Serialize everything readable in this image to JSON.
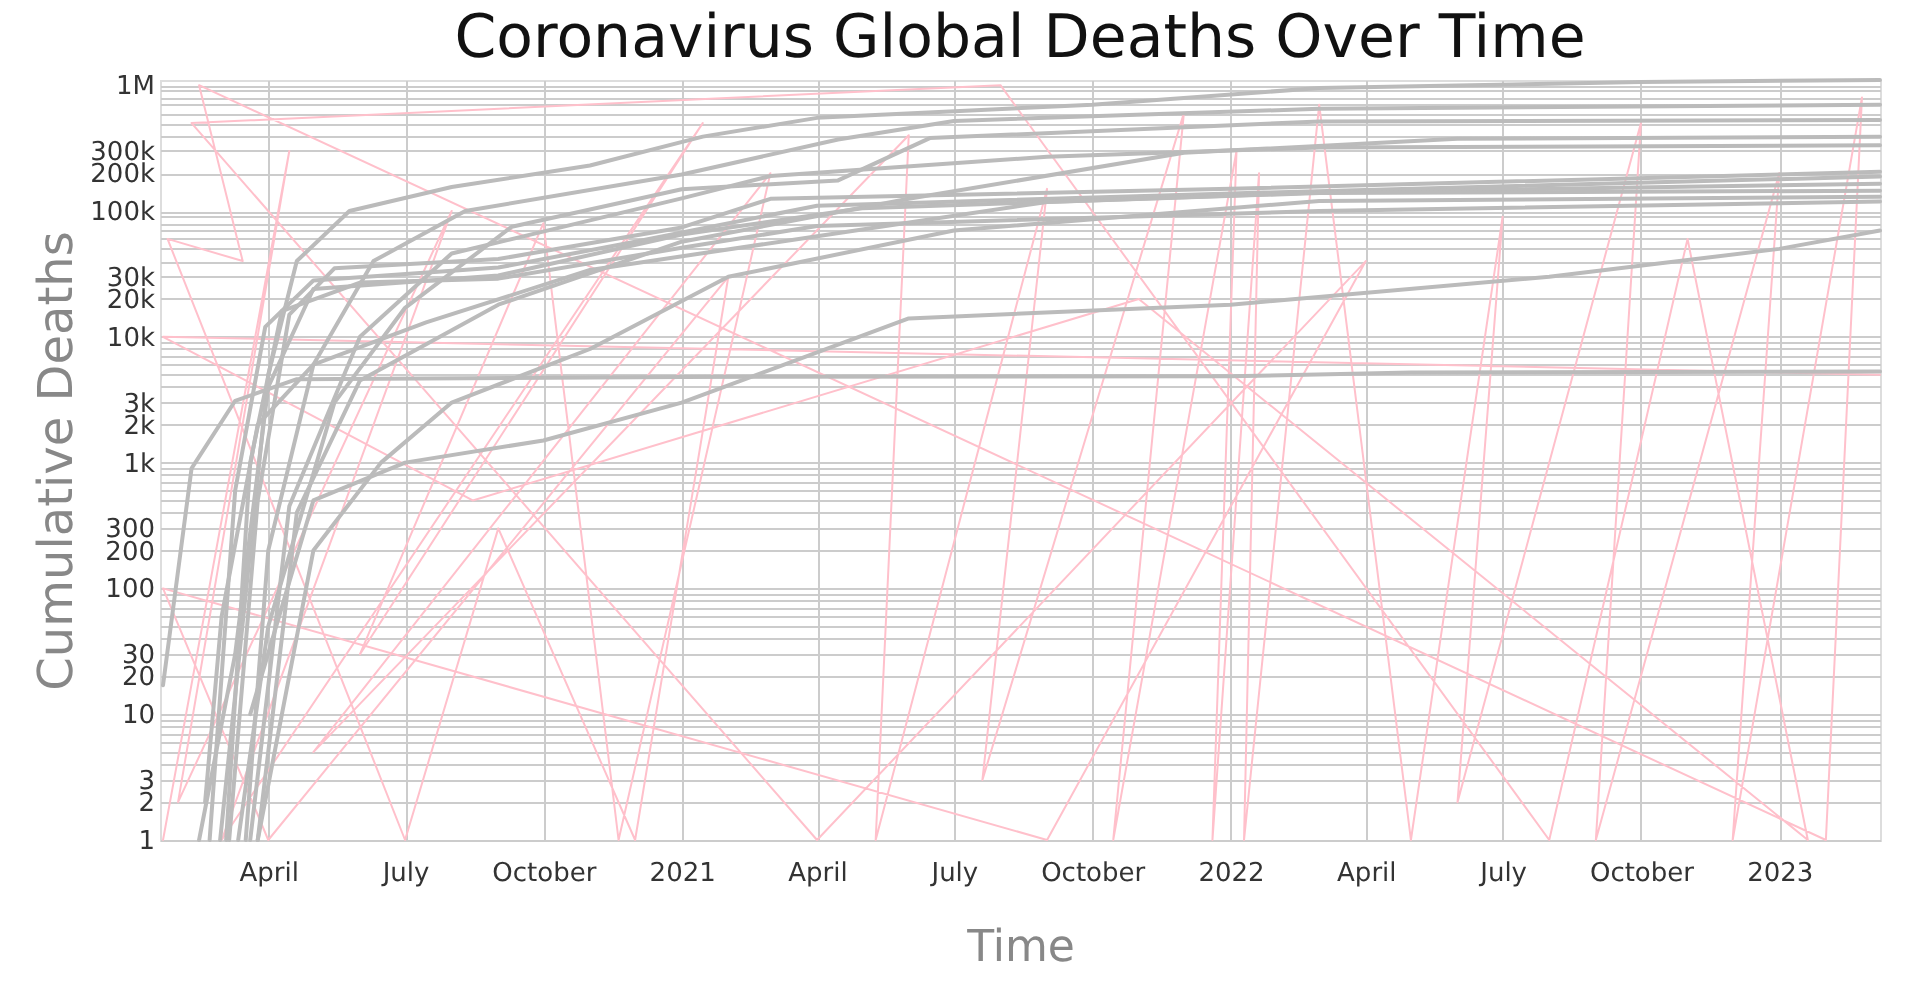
{
  "chart_data": {
    "type": "line",
    "title": "Coronavirus Global Deaths Over Time",
    "xlabel": "Time",
    "ylabel": "Cumulative Deaths",
    "log": "y",
    "grid": true,
    "line_style": "solid",
    "marker": "none",
    "xlim": [
      "2020-01-20",
      "2023-03-09"
    ],
    "xticks": [
      {
        "value": "2020-04-01",
        "label": "April"
      },
      {
        "value": "2020-07-01",
        "label": "July"
      },
      {
        "value": "2020-10-01",
        "label": "October"
      },
      {
        "value": "2021-01-01",
        "label": "2021"
      },
      {
        "value": "2021-04-01",
        "label": "April"
      },
      {
        "value": "2021-07-01",
        "label": "July"
      },
      {
        "value": "2021-10-01",
        "label": "October"
      },
      {
        "value": "2022-01-01",
        "label": "2022"
      },
      {
        "value": "2022-04-01",
        "label": "April"
      },
      {
        "value": "2022-07-01",
        "label": "July"
      },
      {
        "value": "2022-10-01",
        "label": "October"
      },
      {
        "value": "2023-01-01",
        "label": "2023"
      }
    ],
    "ylim": [
      1,
      1100000
    ],
    "yticks": [
      1,
      2,
      3,
      {
        "value": 4,
        "label": null
      },
      {
        "value": 5,
        "label": null
      },
      {
        "value": 6,
        "label": null
      },
      {
        "value": 7,
        "label": null
      },
      {
        "value": 8,
        "label": null
      },
      {
        "value": 9,
        "label": null
      },
      10,
      20,
      30,
      {
        "value": 40,
        "label": null
      },
      {
        "value": 50,
        "label": null
      },
      {
        "value": 60,
        "label": null
      },
      {
        "value": 70,
        "label": null
      },
      {
        "value": 80,
        "label": null
      },
      {
        "value": 90,
        "label": null
      },
      100,
      200,
      300,
      {
        "value": 400,
        "label": null
      },
      {
        "value": 500,
        "label": null
      },
      {
        "value": 600,
        "label": null
      },
      {
        "value": 700,
        "label": null
      },
      {
        "value": 800,
        "label": null
      },
      {
        "value": 900,
        "label": null
      },
      {
        "value": 1000,
        "label": "1k"
      },
      {
        "value": 2000,
        "label": "2k"
      },
      {
        "value": 3000,
        "label": "3k"
      },
      {
        "value": 4000,
        "label": null
      },
      {
        "value": 5000,
        "label": null
      },
      {
        "value": 6000,
        "label": null
      },
      {
        "value": 7000,
        "label": null
      },
      {
        "value": 8000,
        "label": null
      },
      {
        "value": 9000,
        "label": null
      },
      {
        "value": 10000,
        "label": "10k"
      },
      {
        "value": 20000,
        "label": "20k"
      },
      {
        "value": 30000,
        "label": "30k"
      },
      {
        "value": 40000,
        "label": null
      },
      {
        "value": 50000,
        "label": null
      },
      {
        "value": 60000,
        "label": null
      },
      {
        "value": 70000,
        "label": null
      },
      {
        "value": 80000,
        "label": null
      },
      {
        "value": 90000,
        "label": null
      },
      {
        "value": 100000,
        "label": "100k"
      },
      {
        "value": 200000,
        "label": "200k"
      },
      {
        "value": 300000,
        "label": "300k"
      },
      {
        "value": 400000,
        "label": null
      },
      {
        "value": 500000,
        "label": null
      },
      {
        "value": 600000,
        "label": null
      },
      {
        "value": 700000,
        "label": null
      },
      {
        "value": 800000,
        "label": null
      },
      {
        "value": 900000,
        "label": null
      },
      {
        "value": 1000000,
        "label": "1M"
      }
    ],
    "series": [
      {
        "color": "#ffc0cb",
        "x": [
          "2020-01-22",
          "2020-04-15",
          "2020-02-01",
          "2020-08-01",
          "2020-03-01",
          "2021-01-15",
          "2020-06-01",
          "2020-10-01",
          "2020-11-20",
          "2021-03-01",
          "2020-05-01",
          "2021-06-01",
          "2021-05-10",
          "2021-09-01",
          "2021-07-20",
          "2021-12-01",
          "2021-10-15",
          "2022-01-05",
          "2021-12-20",
          "2022-01-20",
          "2022-01-10",
          "2022-03-01",
          "2022-05-01",
          "2022-07-01",
          "2022-06-01",
          "2022-10-01",
          "2022-09-01",
          "2023-01-01",
          "2022-12-01",
          "2023-02-25",
          "2023-02-01",
          "2020-02-15",
          "2020-03-15",
          "2020-01-25",
          "2020-07-01",
          "2020-09-01",
          "2020-12-01",
          "2021-02-01",
          "2020-04-01",
          "2020-01-22",
          "2021-09-01",
          "2022-04-01",
          "2021-04-01",
          "2020-02-10",
          "2021-08-01",
          "2022-08-01",
          "2022-11-01",
          "2023-01-20",
          "2021-11-01",
          "2020-08-15",
          "2020-01-22",
          "2023-03-09"
        ],
        "values": [
          1,
          300000,
          2,
          100000,
          1,
          500000,
          30,
          80000,
          1,
          200000,
          5,
          400000,
          1,
          150000,
          3,
          600000,
          1,
          300000,
          1,
          200000,
          1,
          700000,
          1,
          90000,
          2,
          500000,
          1,
          200000,
          1,
          800000,
          1,
          1000000,
          40000,
          60000,
          1,
          300,
          1,
          30000,
          1,
          100,
          1,
          40000,
          1,
          500000,
          1000000,
          1,
          60000,
          1,
          20000,
          500,
          10000,
          5000
        ]
      },
      {
        "color": "#bbbbbb",
        "x": [
          "2020-02-29",
          "2020-03-20",
          "2020-04-01",
          "2020-04-20",
          "2020-05-25",
          "2020-08-01",
          "2020-11-01",
          "2021-01-15",
          "2021-04-01",
          "2021-10-01",
          "2022-03-01",
          "2022-10-01",
          "2023-03-09"
        ],
        "values": [
          1,
          200,
          5000,
          40000,
          100000,
          155000,
          230000,
          390000,
          550000,
          700000,
          950000,
          1060000,
          1100000
        ]
      },
      {
        "color": "#bbbbbb",
        "x": [
          "2020-03-17",
          "2020-04-01",
          "2020-05-01",
          "2020-06-10",
          "2020-08-10",
          "2021-01-01",
          "2021-04-15",
          "2021-07-01",
          "2022-03-01",
          "2023-03-09"
        ],
        "values": [
          1,
          200,
          6000,
          40000,
          100000,
          195000,
          370000,
          520000,
          650000,
          700000
        ]
      },
      {
        "color": "#bbbbbb",
        "x": [
          "2020-03-12",
          "2020-04-01",
          "2020-05-15",
          "2020-07-01",
          "2020-09-10",
          "2021-01-01",
          "2021-04-15",
          "2021-06-15",
          "2022-03-01",
          "2023-03-09"
        ],
        "values": [
          1,
          50,
          3000,
          17000,
          75000,
          149000,
          175000,
          380000,
          515000,
          530000
        ]
      },
      {
        "color": "#bbbbbb",
        "x": [
          "2020-03-25",
          "2020-04-20",
          "2020-06-01",
          "2020-09-01",
          "2021-01-01",
          "2021-06-01",
          "2021-12-01",
          "2022-06-01",
          "2023-03-09"
        ],
        "values": [
          1,
          400,
          4500,
          18000,
          57000,
          125000,
          290000,
          375000,
          390000
        ]
      },
      {
        "color": "#bbbbbb",
        "x": [
          "2020-03-20",
          "2020-04-15",
          "2020-06-01",
          "2020-08-01",
          "2021-01-01",
          "2021-03-01",
          "2021-09-01",
          "2022-03-01",
          "2023-03-09"
        ],
        "values": [
          1,
          450,
          10000,
          46000,
          126000,
          190000,
          270000,
          320000,
          333000
        ]
      },
      {
        "color": "#bbbbbb",
        "x": [
          "2020-03-06",
          "2020-03-25",
          "2020-04-15",
          "2020-05-15",
          "2020-09-01",
          "2021-01-01",
          "2021-03-01",
          "2022-01-01",
          "2023-03-09"
        ],
        "values": [
          1,
          500,
          15000,
          35000,
          41500,
          74000,
          125000,
          150000,
          205000
        ]
      },
      {
        "color": "#bbbbbb",
        "x": [
          "2020-02-22",
          "2020-03-10",
          "2020-03-30",
          "2020-05-01",
          "2020-09-01",
          "2020-12-01",
          "2021-04-01",
          "2022-01-01",
          "2023-03-09"
        ],
        "values": [
          1,
          600,
          12000,
          28000,
          35500,
          57000,
          110000,
          138000,
          188000
        ]
      },
      {
        "color": "#bbbbbb",
        "x": [
          "2020-02-15",
          "2020-03-10",
          "2020-04-01",
          "2020-05-01",
          "2020-09-01",
          "2021-01-01",
          "2021-05-01",
          "2022-03-01",
          "2023-03-09"
        ],
        "values": [
          1,
          30,
          4000,
          24000,
          30700,
          65000,
          105000,
          140000,
          165000
        ]
      },
      {
        "color": "#bbbbbb",
        "x": [
          "2020-03-04",
          "2020-03-20",
          "2020-04-10",
          "2020-06-01",
          "2020-09-01",
          "2021-01-01",
          "2021-04-01",
          "2022-03-01",
          "2023-03-09"
        ],
        "values": [
          1,
          1000,
          16000,
          27000,
          29000,
          51000,
          76000,
          100000,
          119000
        ]
      },
      {
        "color": "#bbbbbb",
        "x": [
          "2020-02-19",
          "2020-03-01",
          "2020-03-25",
          "2020-05-01",
          "2020-07-15",
          "2020-11-01",
          "2021-04-01",
          "2021-09-01",
          "2022-03-01",
          "2023-03-09"
        ],
        "values": [
          2,
          60,
          2000,
          6000,
          13000,
          34000,
          63000,
          118000,
          139000,
          145000
        ]
      },
      {
        "color": "#bbbbbb",
        "x": [
          "2020-01-22",
          "2020-02-10",
          "2020-03-10",
          "2020-04-20",
          "2021-01-01",
          "2022-01-01",
          "2022-05-01",
          "2023-03-09"
        ],
        "values": [
          17,
          900,
          3100,
          4600,
          4800,
          4850,
          5200,
          5300
        ]
      },
      {
        "color": "#bbbbbb",
        "x": [
          "2020-03-20",
          "2020-05-01",
          "2020-07-01",
          "2020-10-01",
          "2021-01-01",
          "2021-06-01",
          "2022-01-01",
          "2022-08-01",
          "2023-01-01",
          "2023-03-09"
        ],
        "values": [
          10,
          500,
          1000,
          1500,
          3000,
          14000,
          18000,
          30000,
          50000,
          70000
        ]
      },
      {
        "color": "#bbbbbb",
        "x": [
          "2020-03-25",
          "2020-05-01",
          "2020-06-15",
          "2020-08-01",
          "2020-11-01",
          "2021-02-01",
          "2021-07-01",
          "2022-03-01",
          "2023-03-09"
        ],
        "values": [
          1,
          200,
          1000,
          3000,
          8000,
          30000,
          70000,
          120000,
          130000
        ]
      }
    ]
  }
}
